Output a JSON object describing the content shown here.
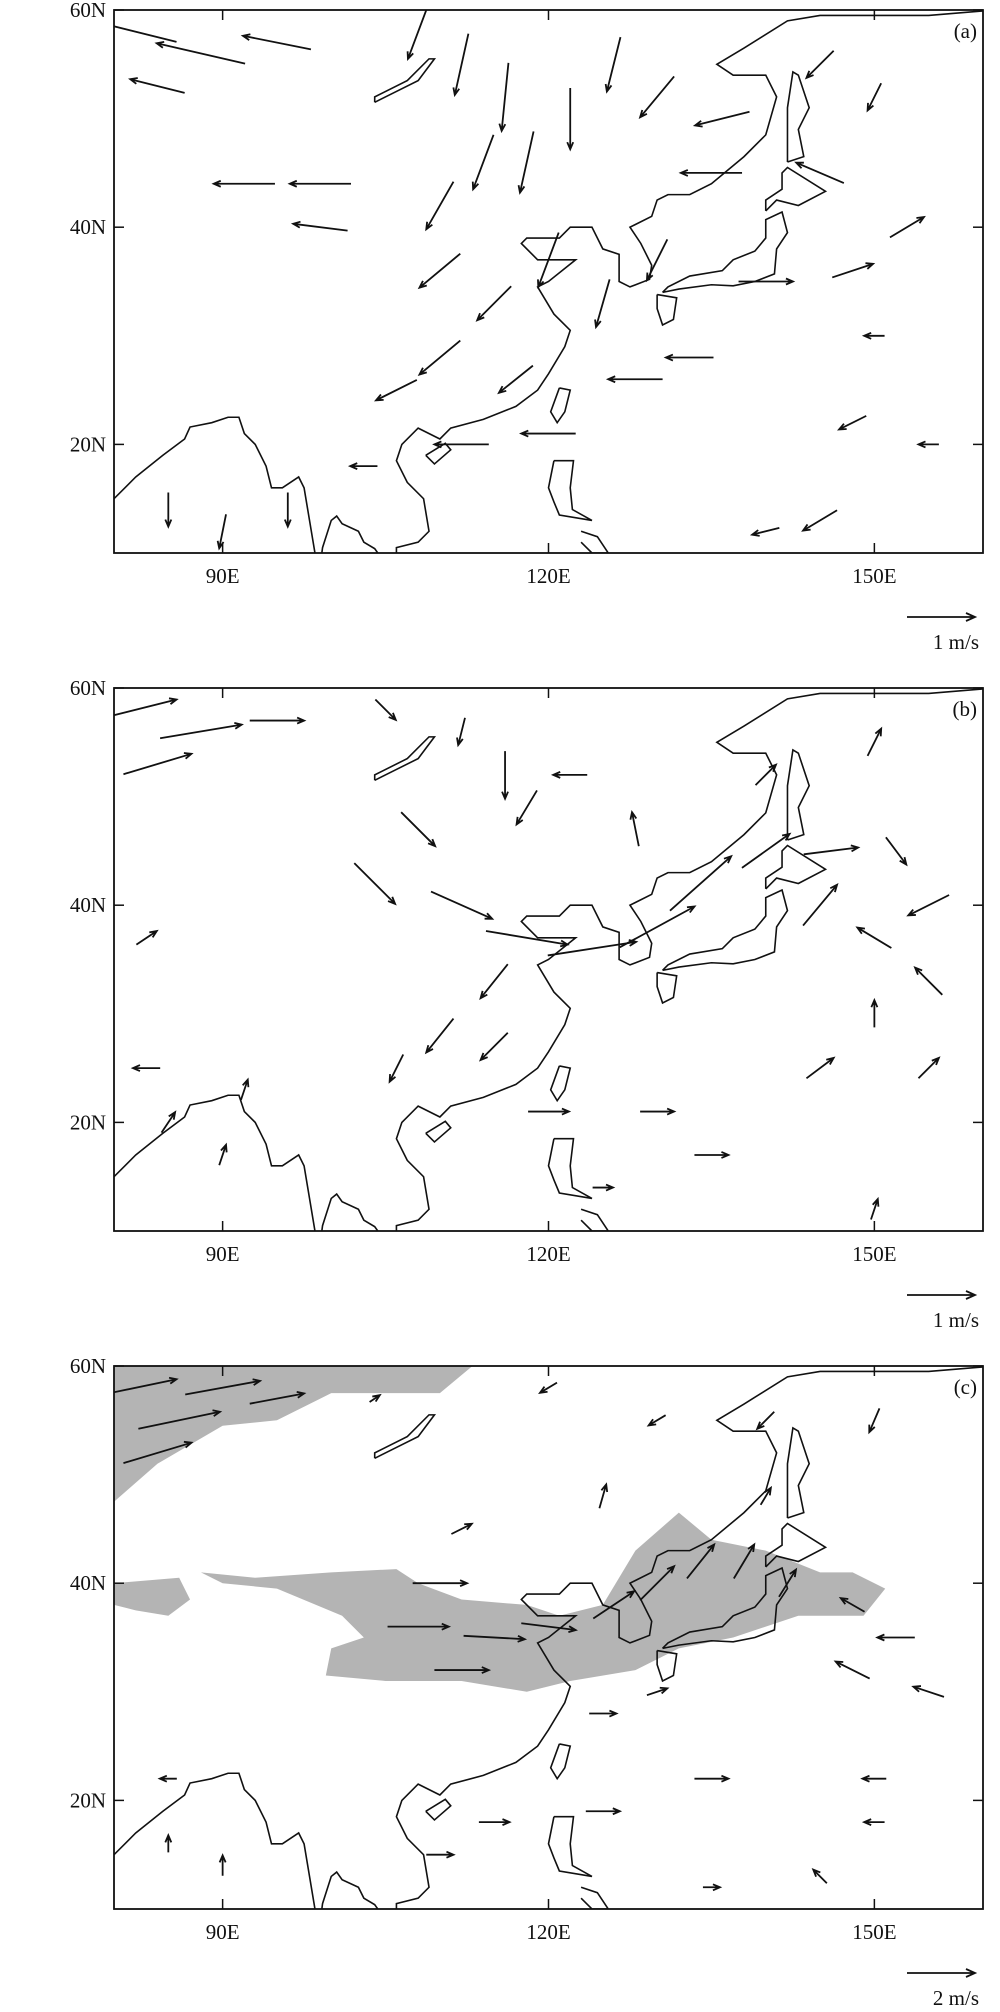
{
  "lonlim": [
    80,
    160
  ],
  "latlim": [
    10,
    60
  ],
  "xticks": [
    {
      "value": 90,
      "label": "90E"
    },
    {
      "value": 120,
      "label": "120E"
    },
    {
      "value": 150,
      "label": "150E"
    }
  ],
  "yticks": [
    {
      "value": 20,
      "label": "20N"
    },
    {
      "value": 40,
      "label": "40N"
    },
    {
      "value": 60,
      "label": "60N"
    }
  ],
  "panels": [
    {
      "label": "(a)",
      "reference": {
        "value": 1,
        "label": "1 m/s"
      },
      "vectors": [
        [
          82,
          58,
          -1.2,
          0.3
        ],
        [
          88,
          56,
          -1.3,
          0.3
        ],
        [
          95,
          57,
          -1,
          0.2
        ],
        [
          84,
          53,
          -0.8,
          0.2
        ],
        [
          92,
          44,
          -0.9,
          0
        ],
        [
          99,
          44,
          -0.9,
          0
        ],
        [
          99,
          40,
          -0.8,
          0.1
        ],
        [
          108,
          58,
          -0.3,
          -0.8
        ],
        [
          112,
          55,
          -0.2,
          -0.9
        ],
        [
          116,
          52,
          -0.1,
          -1
        ],
        [
          114,
          46,
          -0.3,
          -0.8
        ],
        [
          110,
          42,
          -0.4,
          -0.7
        ],
        [
          118,
          46,
          -0.2,
          -0.9
        ],
        [
          122,
          50,
          0,
          -0.9
        ],
        [
          126,
          55,
          -0.2,
          -0.8
        ],
        [
          130,
          52,
          -0.5,
          -0.6
        ],
        [
          136,
          50,
          -0.8,
          -0.2
        ],
        [
          135,
          45,
          -0.9,
          0
        ],
        [
          145,
          45,
          -0.7,
          0.3
        ],
        [
          145,
          55,
          -0.4,
          -0.4
        ],
        [
          150,
          52,
          -0.2,
          -0.4
        ],
        [
          110,
          36,
          -0.6,
          -0.5
        ],
        [
          115,
          33,
          -0.5,
          -0.5
        ],
        [
          120,
          37,
          -0.3,
          -0.8
        ],
        [
          125,
          33,
          -0.2,
          -0.7
        ],
        [
          130,
          37,
          -0.3,
          -0.6
        ],
        [
          110,
          28,
          -0.6,
          -0.5
        ],
        [
          106,
          25,
          -0.6,
          -0.3
        ],
        [
          117,
          26,
          -0.5,
          -0.4
        ],
        [
          120,
          21,
          -0.8,
          0
        ],
        [
          112,
          20,
          -0.8,
          0
        ],
        [
          128,
          26,
          -0.8,
          0
        ],
        [
          133,
          28,
          -0.7,
          0
        ],
        [
          140,
          35,
          0.8,
          0
        ],
        [
          148,
          36,
          0.6,
          0.2
        ],
        [
          153,
          40,
          0.5,
          0.3
        ],
        [
          150,
          30,
          -0.3,
          0
        ],
        [
          148,
          22,
          -0.4,
          -0.2
        ],
        [
          145,
          13,
          -0.5,
          -0.3
        ],
        [
          155,
          20,
          -0.3,
          0
        ],
        [
          85,
          14,
          0,
          -0.5
        ],
        [
          90,
          12,
          -0.1,
          -0.5
        ],
        [
          96,
          14,
          0,
          -0.5
        ],
        [
          103,
          18,
          -0.4,
          0
        ],
        [
          140,
          12,
          -0.4,
          -0.1
        ]
      ]
    },
    {
      "label": "(b)",
      "reference": {
        "value": 1,
        "label": "1 m/s"
      },
      "vectors": [
        [
          82,
          58,
          1.2,
          0.3
        ],
        [
          88,
          56,
          1.2,
          0.2
        ],
        [
          84,
          53,
          1,
          0.3
        ],
        [
          95,
          57,
          0.8,
          0
        ],
        [
          105,
          58,
          0.3,
          -0.3
        ],
        [
          112,
          56,
          -0.1,
          -0.4
        ],
        [
          116,
          52,
          0,
          -0.7
        ],
        [
          108,
          47,
          0.5,
          -0.5
        ],
        [
          104,
          42,
          0.6,
          -0.6
        ],
        [
          112,
          40,
          0.9,
          -0.4
        ],
        [
          118,
          37,
          1.2,
          -0.2
        ],
        [
          124,
          36,
          1.3,
          0.2
        ],
        [
          130,
          38,
          1.1,
          0.6
        ],
        [
          134,
          42,
          0.9,
          0.8
        ],
        [
          128,
          47,
          -0.1,
          0.5
        ],
        [
          122,
          52,
          -0.5,
          0
        ],
        [
          118,
          49,
          -0.3,
          -0.5
        ],
        [
          140,
          45,
          0.7,
          0.5
        ],
        [
          146,
          45,
          0.8,
          0.1
        ],
        [
          152,
          45,
          0.3,
          -0.4
        ],
        [
          155,
          40,
          -0.6,
          -0.3
        ],
        [
          150,
          37,
          -0.5,
          0.3
        ],
        [
          145,
          40,
          0.5,
          0.6
        ],
        [
          140,
          52,
          0.3,
          0.3
        ],
        [
          150,
          55,
          0.2,
          0.4
        ],
        [
          155,
          33,
          -0.4,
          0.4
        ],
        [
          150,
          30,
          0,
          0.4
        ],
        [
          145,
          25,
          0.4,
          0.3
        ],
        [
          155,
          25,
          0.3,
          0.3
        ],
        [
          130,
          21,
          0.5,
          0
        ],
        [
          120,
          21,
          0.6,
          0
        ],
        [
          135,
          17,
          0.5,
          0
        ],
        [
          125,
          14,
          0.3,
          0
        ],
        [
          115,
          33,
          -0.4,
          -0.5
        ],
        [
          110,
          28,
          -0.4,
          -0.5
        ],
        [
          115,
          27,
          -0.4,
          -0.4
        ],
        [
          106,
          25,
          -0.2,
          -0.4
        ],
        [
          83,
          25,
          -0.4,
          0
        ],
        [
          85,
          20,
          0.2,
          0.3
        ],
        [
          90,
          17,
          0.1,
          0.3
        ],
        [
          92,
          23,
          0.1,
          0.3
        ],
        [
          150,
          12,
          0.1,
          0.3
        ],
        [
          83,
          37,
          0.3,
          0.2
        ]
      ]
    },
    {
      "label": "(c)",
      "reference": {
        "value": 2,
        "label": "2 m/s"
      },
      "vectors": [
        [
          82,
          58,
          2.4,
          0.5
        ],
        [
          86,
          55,
          2.4,
          0.5
        ],
        [
          90,
          58,
          2.2,
          0.4
        ],
        [
          84,
          52,
          2,
          0.6
        ],
        [
          95,
          57,
          1.6,
          0.3
        ],
        [
          104,
          57,
          0.3,
          0.2
        ],
        [
          112,
          45,
          0.6,
          0.3
        ],
        [
          110,
          40,
          1.6,
          0
        ],
        [
          108,
          36,
          1.8,
          0
        ],
        [
          115,
          35,
          1.8,
          -0.1
        ],
        [
          112,
          32,
          1.6,
          0
        ],
        [
          120,
          36,
          1.6,
          -0.2
        ],
        [
          126,
          38,
          1.2,
          0.8
        ],
        [
          130,
          40,
          1,
          1
        ],
        [
          134,
          42,
          0.8,
          1
        ],
        [
          138,
          42,
          0.6,
          1
        ],
        [
          142,
          40,
          0.5,
          0.8
        ],
        [
          148,
          38,
          -0.7,
          0.4
        ],
        [
          152,
          35,
          -1.1,
          0
        ],
        [
          155,
          30,
          -0.9,
          0.3
        ],
        [
          148,
          32,
          -1,
          0.5
        ],
        [
          130,
          55,
          -0.5,
          -0.3
        ],
        [
          120,
          58,
          -0.5,
          -0.3
        ],
        [
          140,
          55,
          -0.5,
          -0.5
        ],
        [
          150,
          55,
          -0.3,
          -0.7
        ],
        [
          125,
          48,
          0.2,
          0.7
        ],
        [
          140,
          48,
          0.3,
          0.5
        ],
        [
          125,
          28,
          0.8,
          0
        ],
        [
          135,
          22,
          1,
          0
        ],
        [
          125,
          19,
          1,
          0
        ],
        [
          115,
          18,
          0.9,
          0
        ],
        [
          110,
          15,
          0.8,
          0
        ],
        [
          150,
          22,
          -0.7,
          0
        ],
        [
          150,
          18,
          -0.6,
          0
        ],
        [
          145,
          13,
          -0.4,
          0.4
        ],
        [
          85,
          22,
          -0.5,
          0
        ],
        [
          85,
          16,
          0,
          0.5
        ],
        [
          90,
          14,
          0,
          0.6
        ],
        [
          135,
          12,
          0.5,
          0
        ],
        [
          130,
          30,
          0.6,
          0.2
        ]
      ]
    }
  ]
}
